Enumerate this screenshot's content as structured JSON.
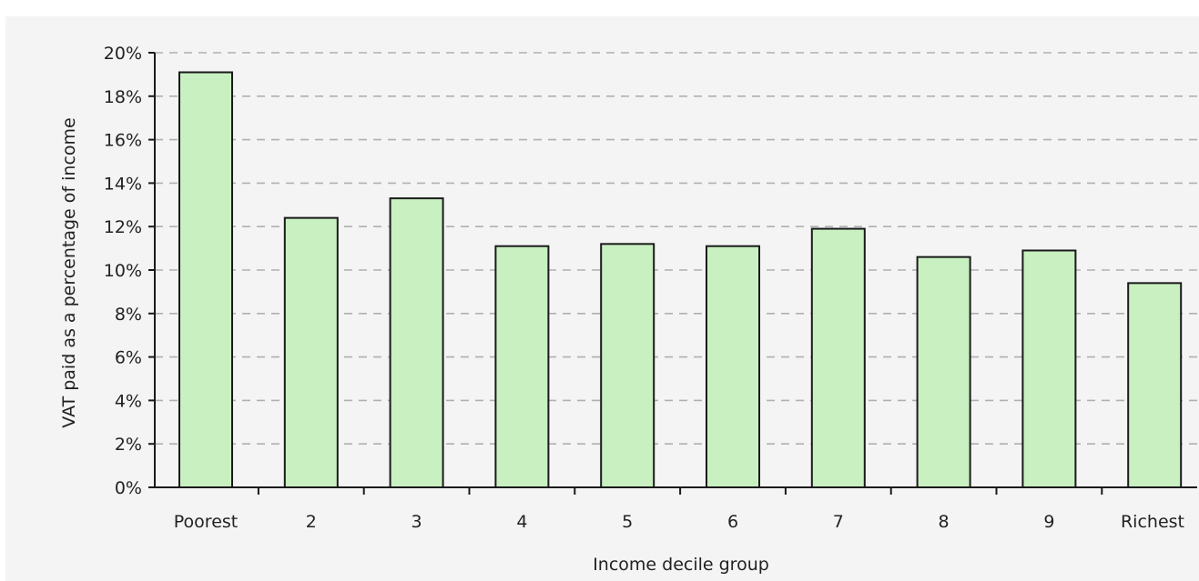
{
  "chart_data": {
    "type": "bar",
    "title": "",
    "xlabel": "Income decile group",
    "ylabel": "VAT paid as a percentage of income",
    "categories": [
      "Poorest",
      "2",
      "3",
      "4",
      "5",
      "6",
      "7",
      "8",
      "9",
      "Richest"
    ],
    "values": [
      19.1,
      12.4,
      13.3,
      11.1,
      11.2,
      11.1,
      11.9,
      10.6,
      10.9,
      9.4
    ],
    "unit": "%",
    "ylim": [
      0,
      20
    ],
    "yticks": [
      0,
      2,
      4,
      6,
      8,
      10,
      12,
      14,
      16,
      18,
      20
    ],
    "ytick_labels": [
      "0%",
      "2%",
      "4%",
      "6%",
      "8%",
      "10%",
      "12%",
      "14%",
      "16%",
      "18%",
      "20%"
    ],
    "grid": true,
    "grid_style": "dashed",
    "legend": "none",
    "colors": {
      "bar_fill": "#c8f0c0",
      "bar_stroke": "#1a1a1a",
      "grid": "#b0b0b0",
      "background": "#f4f4f4"
    }
  }
}
